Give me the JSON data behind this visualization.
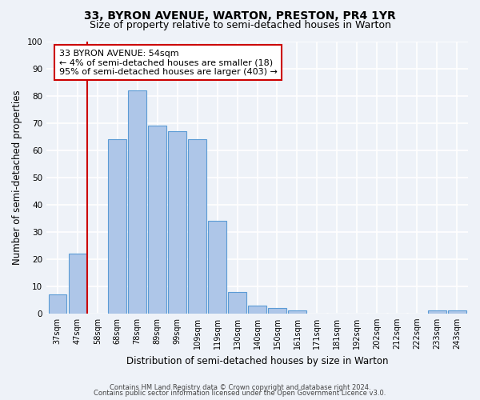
{
  "title": "33, BYRON AVENUE, WARTON, PRESTON, PR4 1YR",
  "subtitle": "Size of property relative to semi-detached houses in Warton",
  "xlabel": "Distribution of semi-detached houses by size in Warton",
  "ylabel": "Number of semi-detached properties",
  "categories": [
    "37sqm",
    "47sqm",
    "58sqm",
    "68sqm",
    "78sqm",
    "89sqm",
    "99sqm",
    "109sqm",
    "119sqm",
    "130sqm",
    "140sqm",
    "150sqm",
    "161sqm",
    "171sqm",
    "181sqm",
    "192sqm",
    "202sqm",
    "212sqm",
    "222sqm",
    "233sqm",
    "243sqm"
  ],
  "values": [
    7,
    22,
    0,
    64,
    82,
    69,
    67,
    64,
    34,
    8,
    3,
    2,
    1,
    0,
    0,
    0,
    0,
    0,
    0,
    1,
    1
  ],
  "bar_color": "#aec6e8",
  "bar_edge_color": "#5b9bd5",
  "vline_x_index": 2,
  "vline_color": "#cc0000",
  "annotation_title": "33 BYRON AVENUE: 54sqm",
  "annotation_line1": "← 4% of semi-detached houses are smaller (18)",
  "annotation_line2": "95% of semi-detached houses are larger (403) →",
  "annotation_box_color": "#cc0000",
  "annotation_bg": "#ffffff",
  "ylim": [
    0,
    100
  ],
  "footnote1": "Contains HM Land Registry data © Crown copyright and database right 2024.",
  "footnote2": "Contains public sector information licensed under the Open Government Licence v3.0.",
  "bg_color": "#eef2f8",
  "plot_bg_color": "#eef2f8",
  "grid_color": "#ffffff",
  "title_fontsize": 10,
  "subtitle_fontsize": 9,
  "tick_fontsize": 7,
  "ylabel_fontsize": 8.5,
  "xlabel_fontsize": 8.5,
  "footnote_fontsize": 6,
  "annotation_fontsize": 8
}
